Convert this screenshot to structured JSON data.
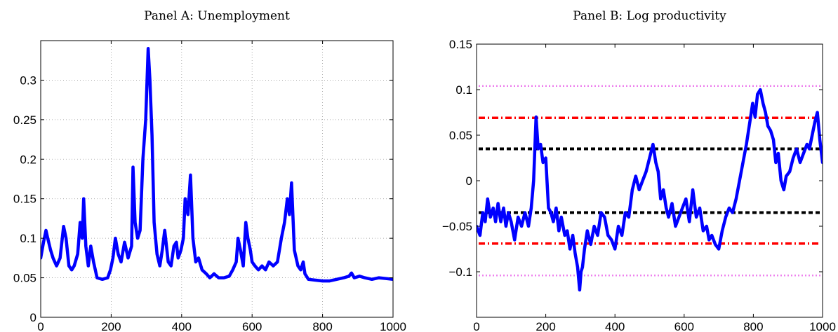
{
  "chart_data": [
    {
      "type": "line",
      "title": "Panel A: Unemployment",
      "xlabel": "",
      "ylabel": "",
      "xlim": [
        0,
        1000
      ],
      "ylim": [
        0,
        0.35
      ],
      "grid": true,
      "legend": "none",
      "x_ticks": [
        0,
        200,
        400,
        600,
        800,
        1000
      ],
      "x_tick_labels": [
        "0",
        "200",
        "400",
        "600",
        "800",
        "1000"
      ],
      "y_ticks": [
        0,
        0.05,
        0.1,
        0.15,
        0.2,
        0.25,
        0.3
      ],
      "y_tick_labels": [
        "0",
        "0.05",
        "0.1",
        "0.15",
        "0.2",
        "0.25",
        "0.3"
      ],
      "series": [
        {
          "color": "#0000ff",
          "x": [
            0,
            8,
            15,
            20,
            28,
            35,
            45,
            55,
            65,
            72,
            80,
            88,
            95,
            105,
            112,
            118,
            122,
            128,
            135,
            142,
            150,
            160,
            175,
            190,
            198,
            205,
            212,
            220,
            228,
            238,
            248,
            258,
            262,
            268,
            275,
            282,
            290,
            298,
            305,
            310,
            316,
            322,
            330,
            338,
            345,
            352,
            362,
            370,
            378,
            385,
            390,
            398,
            405,
            410,
            418,
            425,
            432,
            440,
            448,
            458,
            470,
            480,
            492,
            505,
            520,
            535,
            545,
            555,
            560,
            567,
            575,
            582,
            588,
            595,
            600,
            608,
            618,
            628,
            638,
            648,
            660,
            672,
            683,
            692,
            700,
            706,
            712,
            720,
            730,
            738,
            745,
            750,
            760,
            780,
            800,
            820,
            840,
            860,
            875,
            882,
            890,
            905,
            920,
            940,
            960,
            980,
            1000
          ],
          "values": [
            0.075,
            0.095,
            0.11,
            0.1,
            0.085,
            0.075,
            0.065,
            0.075,
            0.115,
            0.1,
            0.065,
            0.06,
            0.065,
            0.08,
            0.12,
            0.1,
            0.15,
            0.09,
            0.065,
            0.09,
            0.07,
            0.05,
            0.048,
            0.05,
            0.06,
            0.075,
            0.1,
            0.08,
            0.07,
            0.095,
            0.075,
            0.09,
            0.19,
            0.12,
            0.1,
            0.11,
            0.2,
            0.25,
            0.34,
            0.3,
            0.23,
            0.12,
            0.08,
            0.065,
            0.085,
            0.11,
            0.07,
            0.065,
            0.09,
            0.095,
            0.075,
            0.085,
            0.1,
            0.15,
            0.13,
            0.18,
            0.1,
            0.07,
            0.075,
            0.06,
            0.055,
            0.05,
            0.055,
            0.05,
            0.05,
            0.052,
            0.06,
            0.07,
            0.1,
            0.085,
            0.065,
            0.12,
            0.1,
            0.085,
            0.07,
            0.065,
            0.06,
            0.065,
            0.06,
            0.07,
            0.065,
            0.07,
            0.1,
            0.12,
            0.15,
            0.13,
            0.17,
            0.085,
            0.065,
            0.06,
            0.07,
            0.055,
            0.048,
            0.047,
            0.046,
            0.046,
            0.048,
            0.05,
            0.052,
            0.056,
            0.05,
            0.052,
            0.05,
            0.048,
            0.05,
            0.049,
            0.048
          ]
        }
      ]
    },
    {
      "type": "line",
      "title": "Panel B: Log productivity",
      "xlabel": "",
      "ylabel": "",
      "xlim": [
        0,
        1000
      ],
      "ylim": [
        -0.15,
        0.15
      ],
      "grid": false,
      "legend": "none",
      "x_ticks": [
        0,
        200,
        400,
        600,
        800,
        1000
      ],
      "x_tick_labels": [
        "0",
        "200",
        "400",
        "600",
        "800",
        "1000"
      ],
      "y_ticks": [
        -0.1,
        -0.05,
        0,
        0.05,
        0.1,
        0.15
      ],
      "y_tick_labels": [
        "−0.1",
        "−0.05",
        "0",
        "0.05",
        "0.1",
        "0.15"
      ],
      "reference_lines": [
        {
          "y": 0.104,
          "color": "#ee82ee",
          "style": "dotted"
        },
        {
          "y": -0.104,
          "color": "#ee82ee",
          "style": "dotted"
        },
        {
          "y": 0.069,
          "color": "#ff0000",
          "style": "dashdot"
        },
        {
          "y": -0.069,
          "color": "#ff0000",
          "style": "dashdot"
        },
        {
          "y": 0.035,
          "color": "#000000",
          "style": "dashed"
        },
        {
          "y": -0.035,
          "color": "#000000",
          "style": "dashed"
        }
      ],
      "series": [
        {
          "color": "#0000ff",
          "x": [
            0,
            10,
            18,
            25,
            32,
            40,
            48,
            55,
            62,
            70,
            78,
            85,
            92,
            100,
            110,
            120,
            130,
            140,
            150,
            158,
            165,
            172,
            178,
            185,
            192,
            200,
            208,
            215,
            222,
            230,
            238,
            245,
            255,
            262,
            270,
            278,
            285,
            292,
            298,
            302,
            306,
            312,
            320,
            330,
            340,
            350,
            360,
            370,
            380,
            390,
            400,
            410,
            420,
            430,
            440,
            450,
            460,
            470,
            480,
            490,
            500,
            510,
            518,
            525,
            532,
            540,
            548,
            555,
            565,
            575,
            585,
            595,
            605,
            615,
            625,
            635,
            645,
            655,
            665,
            672,
            680,
            690,
            700,
            710,
            720,
            730,
            740,
            750,
            760,
            770,
            780,
            790,
            798,
            805,
            812,
            820,
            828,
            835,
            842,
            850,
            858,
            865,
            872,
            880,
            888,
            895,
            905,
            915,
            925,
            935,
            945,
            955,
            962,
            970,
            978,
            985,
            992,
            1000
          ],
          "values": [
            -0.05,
            -0.06,
            -0.035,
            -0.045,
            -0.02,
            -0.04,
            -0.03,
            -0.045,
            -0.025,
            -0.045,
            -0.03,
            -0.05,
            -0.035,
            -0.045,
            -0.065,
            -0.04,
            -0.05,
            -0.035,
            -0.05,
            -0.03,
            0.0,
            0.07,
            0.035,
            0.04,
            0.02,
            0.025,
            -0.03,
            -0.035,
            -0.045,
            -0.03,
            -0.055,
            -0.04,
            -0.06,
            -0.055,
            -0.075,
            -0.06,
            -0.08,
            -0.095,
            -0.12,
            -0.1,
            -0.095,
            -0.075,
            -0.055,
            -0.07,
            -0.05,
            -0.06,
            -0.035,
            -0.04,
            -0.06,
            -0.065,
            -0.075,
            -0.05,
            -0.06,
            -0.035,
            -0.04,
            -0.01,
            0.005,
            -0.01,
            0.0,
            0.01,
            0.025,
            0.04,
            0.02,
            0.01,
            -0.02,
            -0.01,
            -0.03,
            -0.04,
            -0.025,
            -0.05,
            -0.04,
            -0.03,
            -0.02,
            -0.045,
            -0.01,
            -0.04,
            -0.03,
            -0.055,
            -0.05,
            -0.065,
            -0.06,
            -0.07,
            -0.075,
            -0.055,
            -0.04,
            -0.03,
            -0.035,
            -0.02,
            0.0,
            0.02,
            0.04,
            0.065,
            0.085,
            0.07,
            0.095,
            0.1,
            0.085,
            0.075,
            0.06,
            0.055,
            0.045,
            0.02,
            0.03,
            0.0,
            -0.01,
            0.005,
            0.01,
            0.025,
            0.035,
            0.02,
            0.03,
            0.04,
            0.035,
            0.05,
            0.065,
            0.075,
            0.045,
            0.02
          ]
        }
      ]
    }
  ]
}
